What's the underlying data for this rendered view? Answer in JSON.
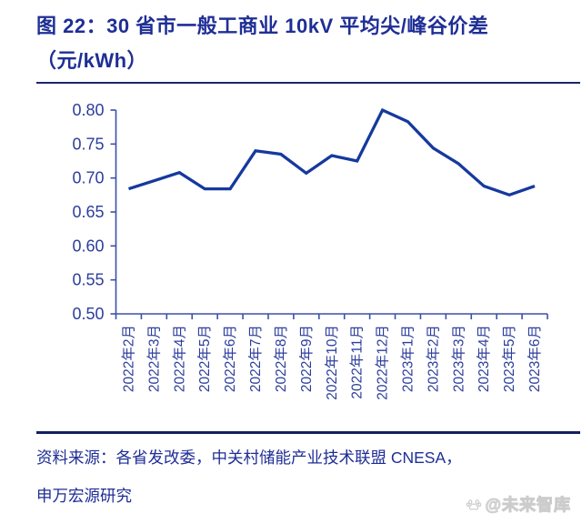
{
  "title": {
    "line1": "图 22：30 省市一般工商业 10kV 平均尖/峰谷价差",
    "line2": "（元/kWh）"
  },
  "source": {
    "line1": "资料来源：各省发改委，中关村储能产业技术联盟 CNESA，",
    "line2": "申万宏源研究"
  },
  "watermark": {
    "icon": "paw-icon",
    "text": "@未来智库"
  },
  "colors": {
    "title_text": "#1f2e95",
    "line": "#16399e",
    "axis": "#3c50a8",
    "tick_label": "#2d3e9c",
    "divider": "#1b2668",
    "watermark": "#d9d9d9"
  },
  "chart_data": {
    "type": "line",
    "title": "图 22：30 省市一般工商业 10kV 平均尖/峰谷价差（元/kWh）",
    "xlabel": "",
    "ylabel": "",
    "categories": [
      "2022年2月",
      "2022年3月",
      "2022年4月",
      "2022年5月",
      "2022年6月",
      "2022年7月",
      "2022年8月",
      "2022年9月",
      "2022年10月",
      "2022年11月",
      "2022年12月",
      "2023年1月",
      "2023年2月",
      "2023年3月",
      "2023年4月",
      "2023年5月",
      "2023年6月"
    ],
    "values": [
      0.684,
      0.696,
      0.708,
      0.684,
      0.684,
      0.74,
      0.735,
      0.707,
      0.733,
      0.725,
      0.8,
      0.783,
      0.744,
      0.721,
      0.688,
      0.675,
      0.688
    ],
    "ylim": [
      0.5,
      0.8
    ],
    "ytick_step": 0.05,
    "ytick_labels": [
      "0.50",
      "0.55",
      "0.60",
      "0.65",
      "0.70",
      "0.75",
      "0.80"
    ],
    "grid": false,
    "legend_position": "none"
  }
}
